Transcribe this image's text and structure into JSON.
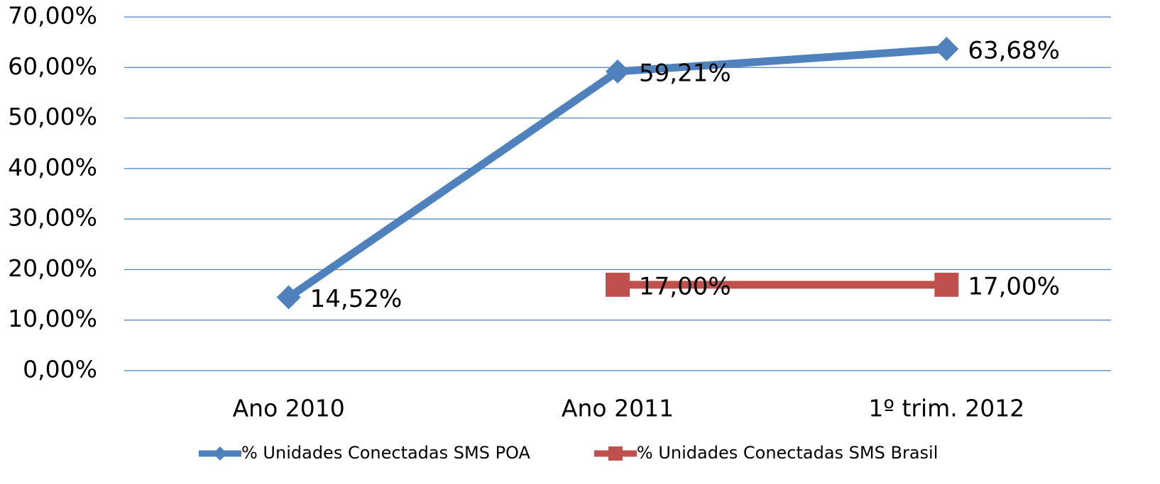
{
  "chart_data": {
    "type": "line",
    "categories": [
      "Ano 2010",
      "Ano 2011",
      "1º trim. 2012"
    ],
    "series": [
      {
        "name": "% Unidades Conectadas SMS POA",
        "color": "#4f81bd",
        "marker": "diamond",
        "values": [
          14.52,
          59.21,
          63.68
        ],
        "value_labels": [
          "14,52%",
          "59,21%",
          "63,68%"
        ]
      },
      {
        "name": "% Unidades Conectadas SMS Brasil",
        "color": "#c0504d",
        "marker": "square",
        "values": [
          null,
          17,
          17
        ],
        "value_labels": [
          null,
          "17,00%",
          "17,00%"
        ]
      }
    ],
    "ylim": [
      0,
      70
    ],
    "yticks": [
      {
        "value": 0,
        "label": "0,00%"
      },
      {
        "value": 10,
        "label": "10,00%"
      },
      {
        "value": 20,
        "label": "20,00%"
      },
      {
        "value": 30,
        "label": "30,00%"
      },
      {
        "value": 40,
        "label": "40,00%"
      },
      {
        "value": 50,
        "label": "50,00%"
      },
      {
        "value": 60,
        "label": "60,00%"
      },
      {
        "value": 70,
        "label": "70,00%"
      }
    ],
    "grid": true,
    "legend": "bottom"
  }
}
